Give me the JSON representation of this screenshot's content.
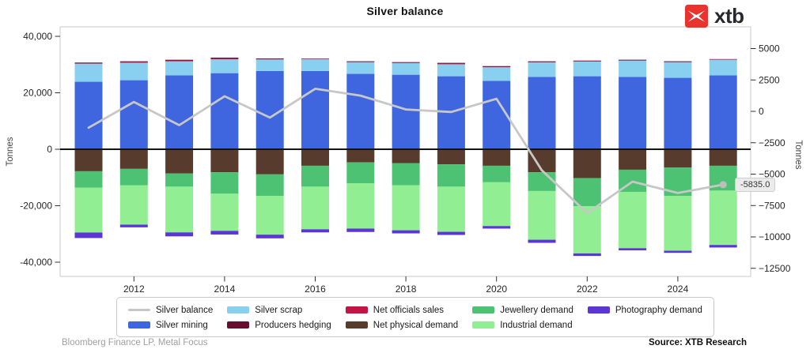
{
  "title": "Silver balance",
  "logo": {
    "text": "xtb",
    "accent_color": "#e8332f"
  },
  "footer": {
    "left": "Bloomberg Finance LP, Metal Focus",
    "right": "Source: XTB Research"
  },
  "annotation": {
    "text": "-5835.0",
    "year": 2025,
    "value": -5835
  },
  "left_axis": {
    "label": "Tonnes",
    "ticks": [
      "40,000",
      "20,000",
      "0",
      "-20,000",
      "-40,000"
    ],
    "tick_values": [
      40000,
      20000,
      0,
      -20000,
      -40000
    ]
  },
  "right_axis": {
    "label": "Tonnes",
    "ticks": [
      "5000",
      "2500",
      "0",
      "−2500",
      "−5000",
      "−7500",
      "−10000",
      "−12500"
    ],
    "tick_values": [
      5000,
      2500,
      0,
      -2500,
      -5000,
      -7500,
      -10000,
      -12500
    ]
  },
  "x_axis": {
    "tick_years": [
      2012,
      2014,
      2016,
      2018,
      2020,
      2022,
      2024
    ]
  },
  "chart_data": {
    "type": "stacked-bar-with-line",
    "categories": [
      2011,
      2012,
      2013,
      2014,
      2015,
      2016,
      2017,
      2018,
      2019,
      2020,
      2021,
      2022,
      2023,
      2024,
      2025
    ],
    "bar_axis": "left",
    "line_axis": "right",
    "ylim_left": [
      -45000,
      42000
    ],
    "ylim_right": [
      -13400,
      6400
    ],
    "grid": false,
    "legend_position": "bottom",
    "stack_order_positive": [
      "Silver mining",
      "Silver scrap",
      "Net officials sales",
      "Producers hedging"
    ],
    "stack_order_negative": [
      "Net physical demand",
      "Jewellery demand",
      "Industrial demand",
      "Photography demand"
    ],
    "series": [
      {
        "name": "Silver mining",
        "type": "bar",
        "color": "#3f66de",
        "values": [
          23900,
          24450,
          26150,
          26950,
          27700,
          27700,
          26700,
          26400,
          25850,
          24200,
          25600,
          25850,
          25600,
          25300,
          26150
        ]
      },
      {
        "name": "Silver scrap",
        "type": "bar",
        "color": "#89cff0",
        "values": [
          6400,
          6200,
          5000,
          4900,
          4150,
          4350,
          4250,
          4250,
          4250,
          4850,
          5200,
          5300,
          5900,
          5650,
          5700
        ]
      },
      {
        "name": "Net officials sales",
        "type": "bar",
        "color": "#c41444",
        "values": [
          300,
          350,
          450,
          450,
          200,
          100,
          150,
          150,
          350,
          300,
          250,
          200,
          150,
          150,
          100
        ]
      },
      {
        "name": "Producers hedging",
        "type": "bar",
        "color": "#660e2e",
        "values": [
          100,
          150,
          100,
          150,
          100,
          0,
          50,
          50,
          150,
          100,
          100,
          50,
          50,
          50,
          0
        ]
      },
      {
        "name": "Net physical demand",
        "type": "bar",
        "color": "#573b2c",
        "values": [
          -7800,
          -6950,
          -8600,
          -8150,
          -8900,
          -5850,
          -4650,
          -4900,
          -5350,
          -5850,
          -8150,
          -10200,
          -7250,
          -6500,
          -5850
        ]
      },
      {
        "name": "Jewellery demand",
        "type": "bar",
        "color": "#4ec273",
        "values": [
          -5850,
          -5850,
          -4650,
          -7600,
          -7600,
          -7400,
          -7400,
          -7850,
          -7900,
          -5850,
          -6650,
          -10000,
          -7850,
          -10000,
          -8800
        ]
      },
      {
        "name": "Industrial demand",
        "type": "bar",
        "color": "#92ee92",
        "values": [
          -15850,
          -13900,
          -16200,
          -13150,
          -13750,
          -15100,
          -16050,
          -15950,
          -16000,
          -15500,
          -17250,
          -16700,
          -19950,
          -19450,
          -19250
        ]
      },
      {
        "name": "Photography demand",
        "type": "bar",
        "color": "#5b35d5",
        "values": [
          -1950,
          -950,
          -1400,
          -1300,
          -1300,
          -1100,
          -1200,
          -1100,
          -1100,
          -900,
          -1100,
          -900,
          -750,
          -750,
          -900
        ]
      },
      {
        "name": "Silver balance",
        "type": "line",
        "color": "#c7c7c7",
        "values": [
          -1300,
          750,
          -1100,
          1200,
          -500,
          1800,
          1250,
          150,
          -50,
          1000,
          -4700,
          -8100,
          -5600,
          -6500,
          -5835
        ]
      }
    ]
  },
  "legend": {
    "items": [
      "Silver balance",
      "Silver mining",
      "Silver scrap",
      "Producers hedging",
      "Net officials sales",
      "Net physical demand",
      "Jewellery demand",
      "Industrial demand",
      "Photography demand"
    ]
  }
}
